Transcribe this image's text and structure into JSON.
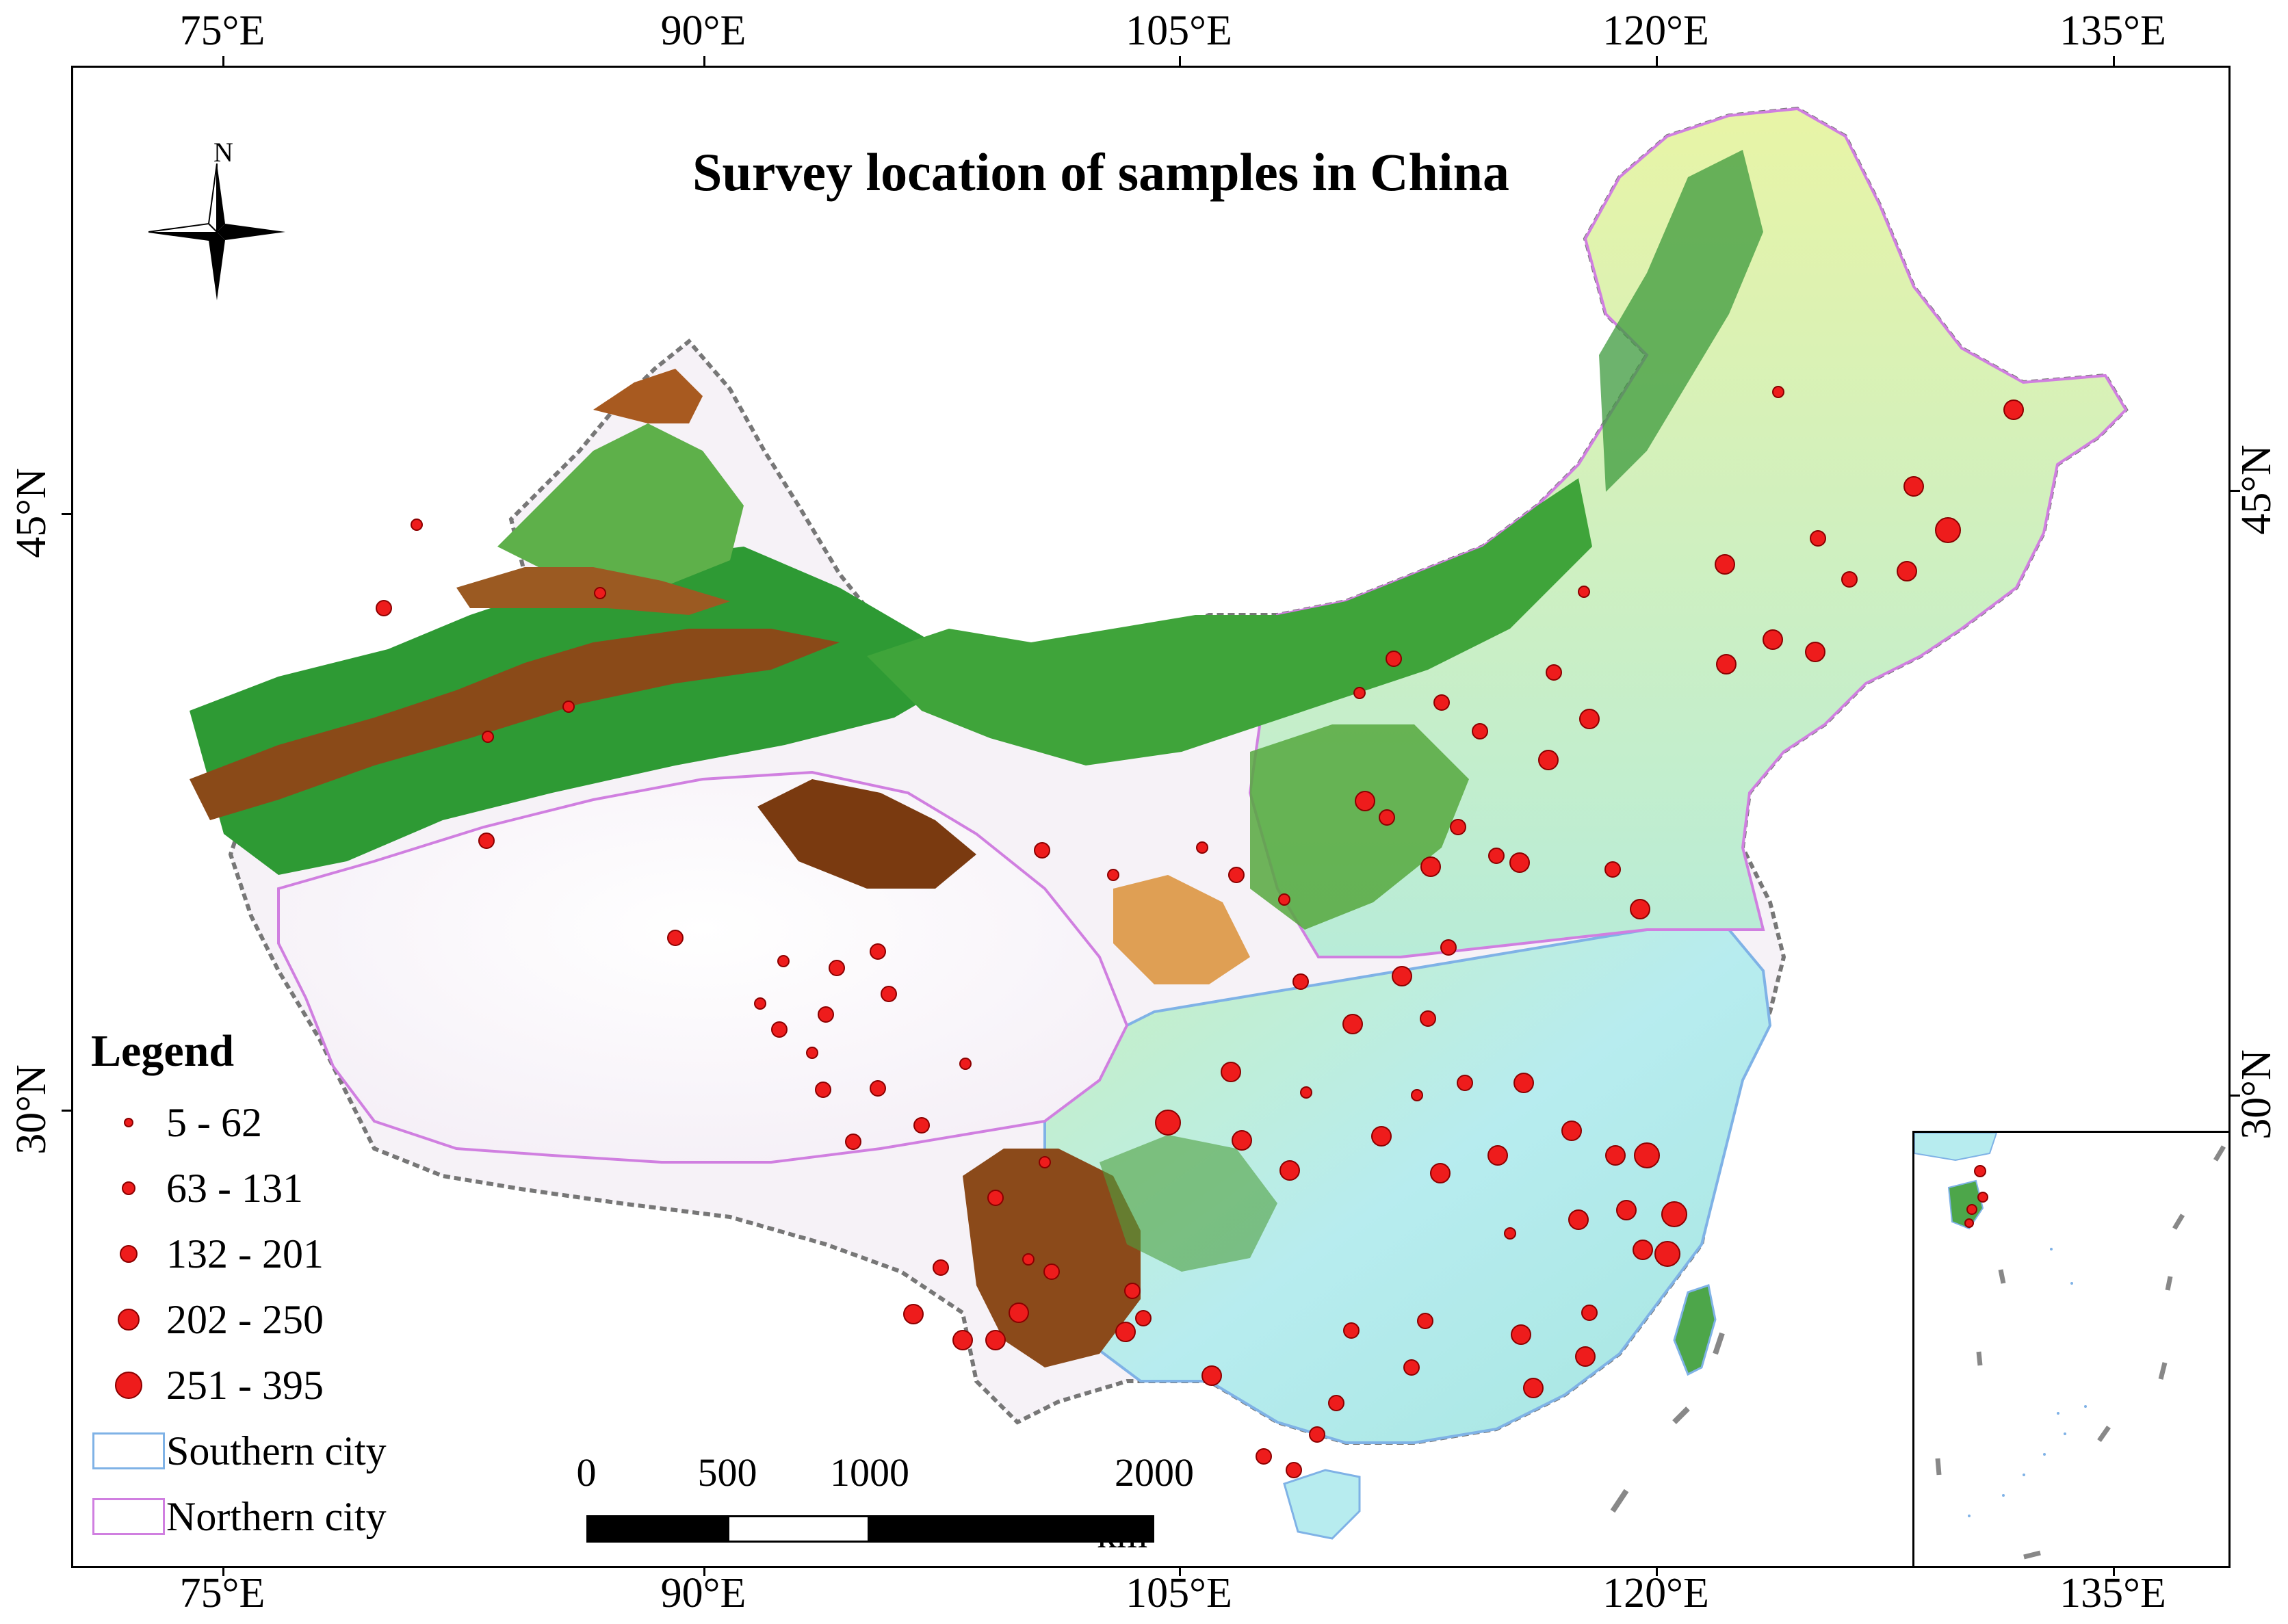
{
  "title": "Survey location of samples in China",
  "axes": {
    "top_labels": [
      "75°E",
      "90°E",
      "105°E",
      "120°E",
      "135°E"
    ],
    "bottom_labels": [
      "75°E",
      "90°E",
      "105°E",
      "120°E",
      "135°E"
    ],
    "left_labels": [
      "45°N",
      "30°N"
    ],
    "right_labels": [
      "45°N",
      "30°N"
    ]
  },
  "north_arrow": {
    "label": "N",
    "icon": "compass-rose-icon"
  },
  "legend": {
    "title": "Legend",
    "size_classes": [
      {
        "label": "5 - 62",
        "radius_level": 1
      },
      {
        "label": "63 - 131",
        "radius_level": 2
      },
      {
        "label": "132 - 201",
        "radius_level": 3
      },
      {
        "label": "202 - 250",
        "radius_level": 4
      },
      {
        "label": "251 - 395",
        "radius_level": 5
      }
    ],
    "regions": [
      {
        "label": "Southern city",
        "color": "#7fb2e6"
      },
      {
        "label": "Northern city",
        "color": "#d07fe0"
      }
    ]
  },
  "scale_bar": {
    "labels": [
      "0",
      "500",
      "1000",
      "2000"
    ],
    "unit": "km"
  },
  "colors": {
    "sample_point": "#ee1c1c",
    "lowland_green": "#2e9a34",
    "southern_fill": "#b7ecef",
    "northern_fill": "#f6f4f8",
    "plateau_brown": "#7a3a10"
  }
}
